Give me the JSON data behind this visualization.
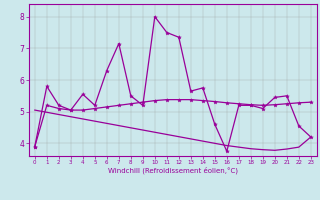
{
  "x": [
    0,
    1,
    2,
    3,
    4,
    5,
    6,
    7,
    8,
    9,
    10,
    11,
    12,
    13,
    14,
    15,
    16,
    17,
    18,
    19,
    20,
    21,
    22,
    23
  ],
  "y_jagged": [
    3.9,
    5.8,
    5.2,
    5.05,
    5.55,
    5.2,
    6.3,
    7.15,
    5.5,
    5.2,
    8.0,
    7.5,
    7.35,
    5.65,
    5.75,
    4.6,
    3.75,
    5.2,
    5.2,
    5.1,
    5.45,
    5.5,
    4.55,
    4.2
  ],
  "y_smooth": [
    3.9,
    5.2,
    5.1,
    5.05,
    5.05,
    5.1,
    5.15,
    5.2,
    5.25,
    5.3,
    5.35,
    5.38,
    5.38,
    5.38,
    5.35,
    5.32,
    5.28,
    5.25,
    5.22,
    5.2,
    5.22,
    5.25,
    5.28,
    5.3
  ],
  "y_decline": [
    5.05,
    4.98,
    4.91,
    4.84,
    4.77,
    4.7,
    4.63,
    4.56,
    4.49,
    4.42,
    4.35,
    4.28,
    4.21,
    4.14,
    4.07,
    4.0,
    3.93,
    3.88,
    3.83,
    3.8,
    3.78,
    3.82,
    3.88,
    4.2
  ],
  "color": "#990099",
  "bg_color": "#cce8ec",
  "grid_color": "#999999",
  "ylim": [
    3.6,
    8.4
  ],
  "yticks": [
    4,
    5,
    6,
    7,
    8
  ],
  "xlim": [
    -0.5,
    23.5
  ],
  "xlabel": "Windchill (Refroidissement éolien,°C)"
}
